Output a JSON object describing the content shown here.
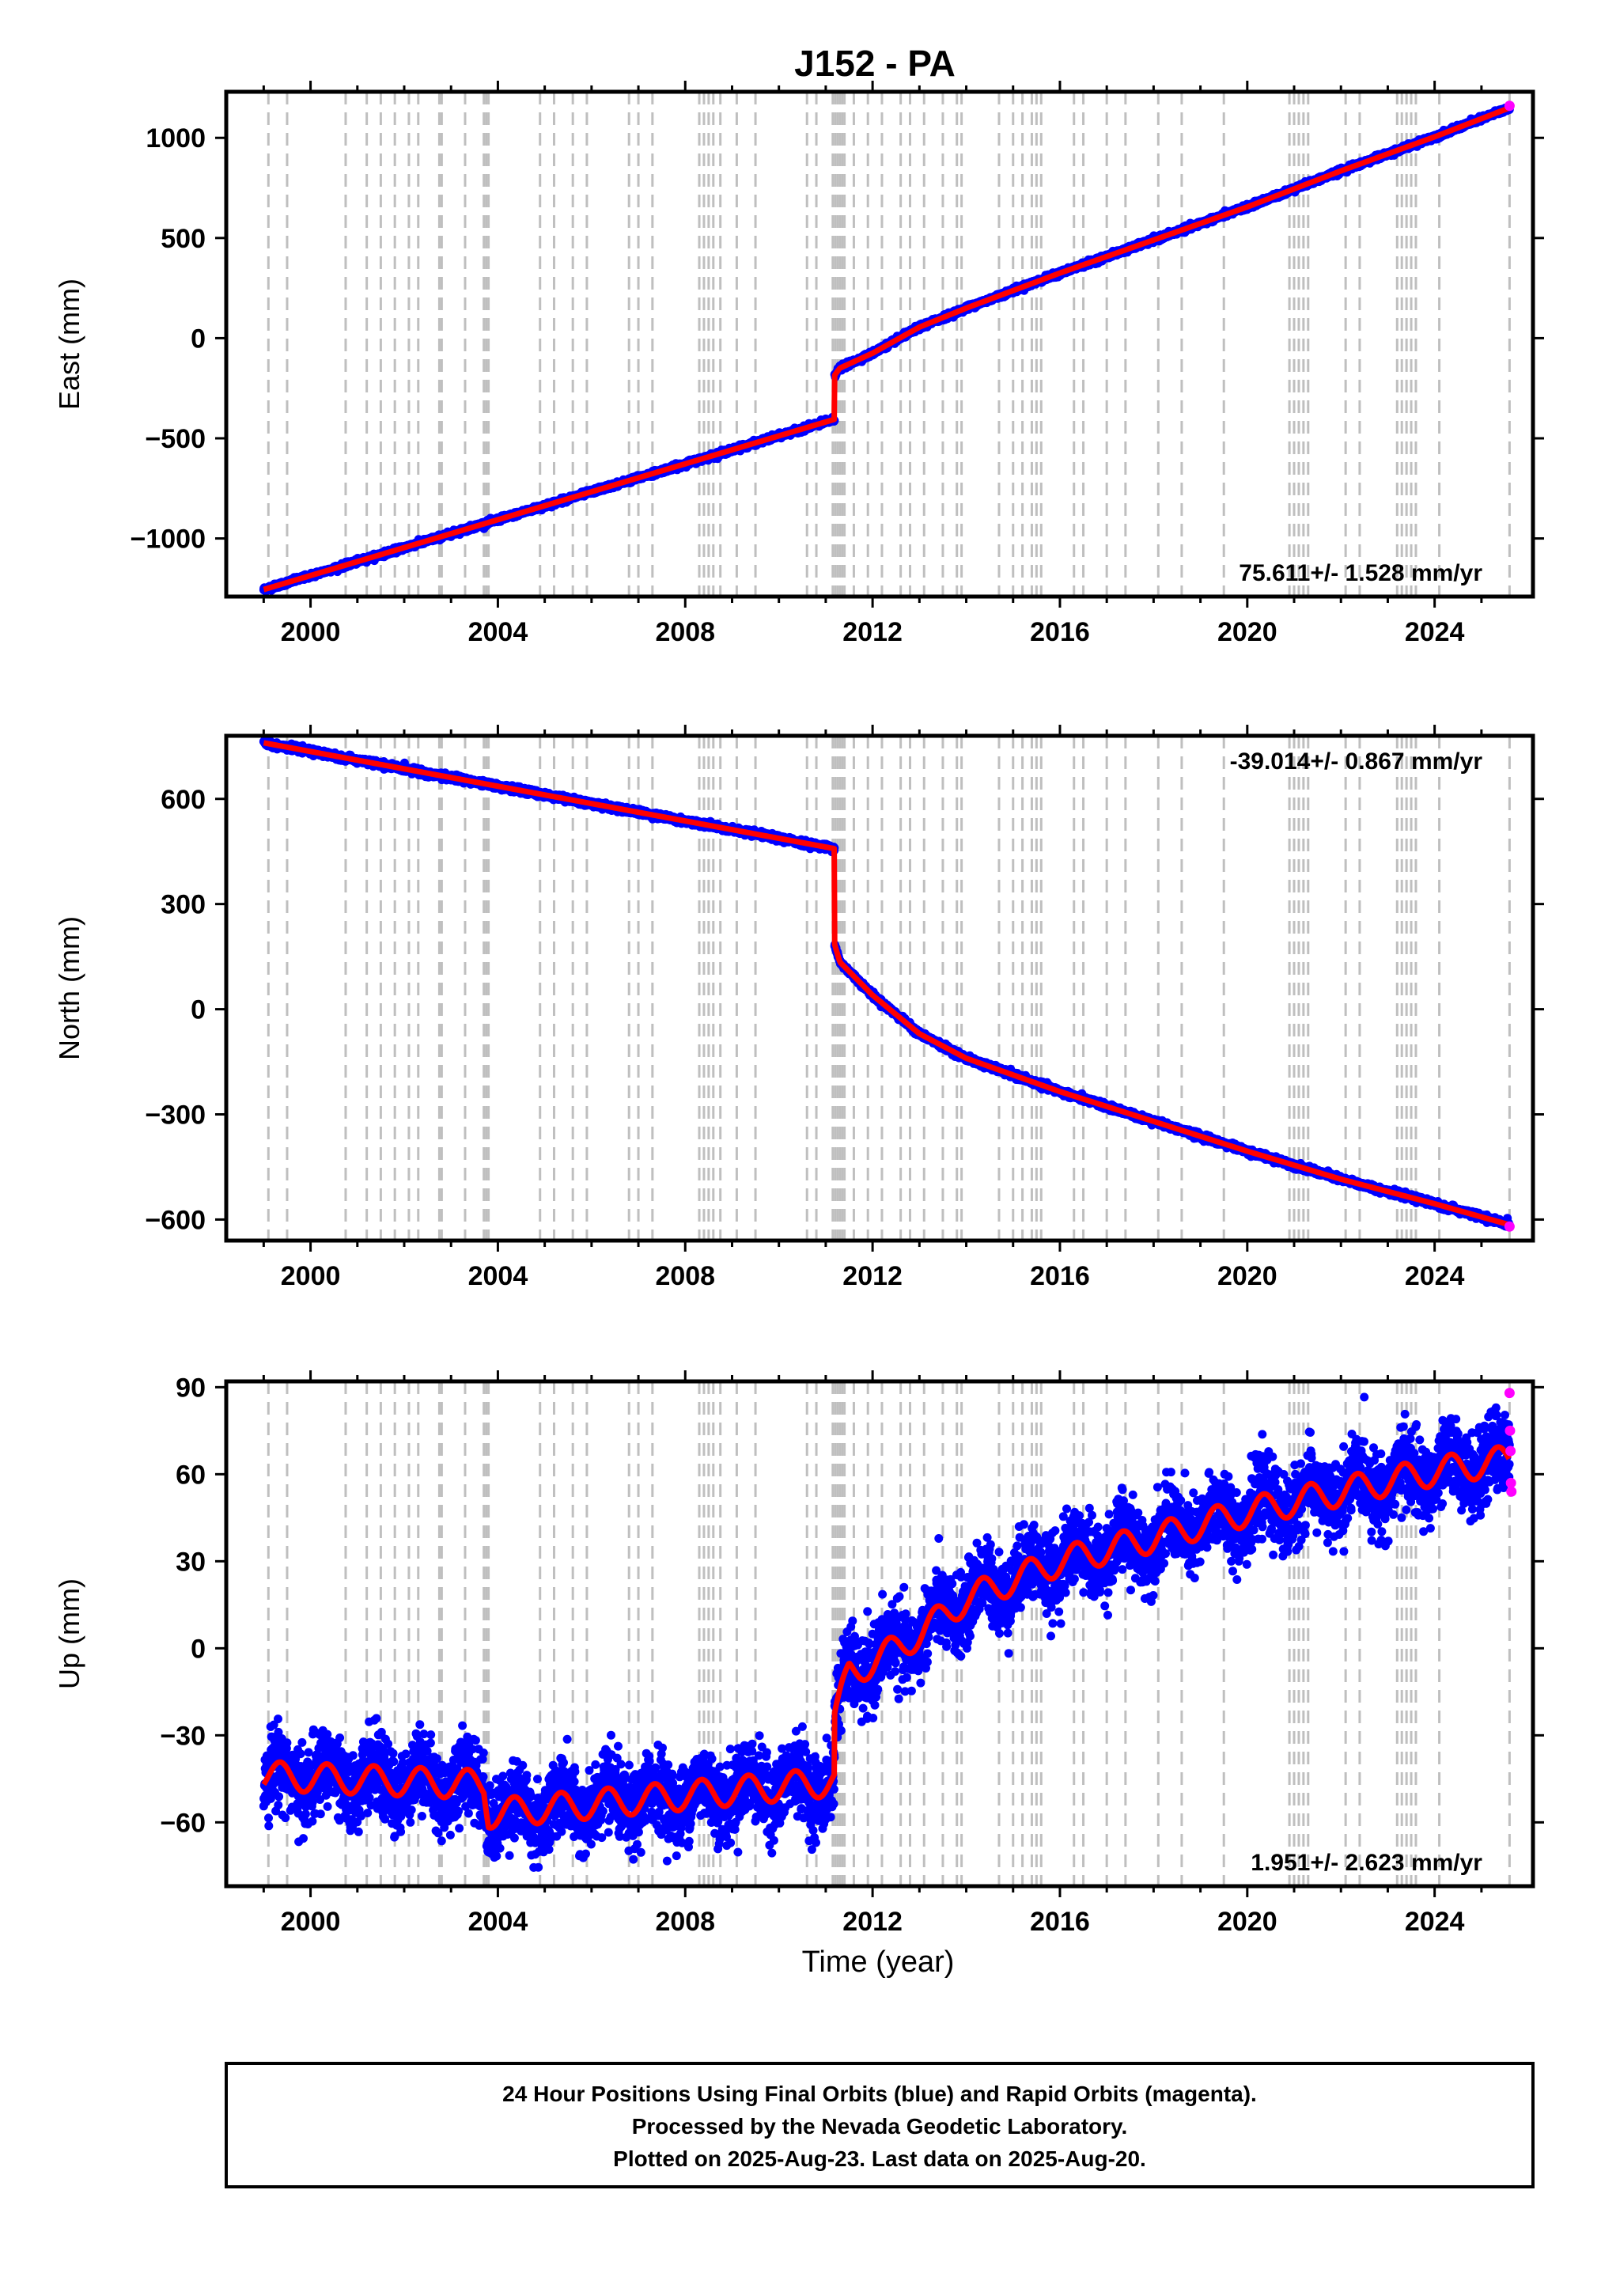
{
  "title": "J152 - PA",
  "colors": {
    "final_orbits": "#0000ff",
    "rapid_orbits": "#ff00ff",
    "model": "#ff0000",
    "event_lines": "#bfbfbf",
    "frame": "#000000"
  },
  "footer": {
    "line1": "24 Hour Positions Using Final Orbits (blue) and Rapid Orbits (magenta).",
    "line2": "Processed by the Nevada Geodetic Laboratory.",
    "line3": "Plotted on 2025-Aug-23. Last data on 2025-Aug-20."
  },
  "event_lines_years": [
    1999.1,
    1999.5,
    2000.75,
    2001.2,
    2001.5,
    2001.8,
    2002.1,
    2002.3,
    2002.75,
    2002.8,
    2003.3,
    2003.7,
    2003.75,
    2003.8,
    2004.9,
    2005.2,
    2005.6,
    2005.9,
    2006.8,
    2007.0,
    2007.3,
    2008.3,
    2008.4,
    2008.5,
    2008.6,
    2008.75,
    2009.1,
    2009.5,
    2010.6,
    2010.8,
    2011.15,
    2011.2,
    2011.25,
    2011.3,
    2011.35,
    2011.4,
    2011.6,
    2011.9,
    2012.2,
    2012.6,
    2012.8,
    2013.1,
    2013.5,
    2013.8,
    2013.9,
    2014.7,
    2015.0,
    2015.2,
    2015.4,
    2015.5,
    2015.6,
    2016.3,
    2016.5,
    2017.0,
    2017.4,
    2018.1,
    2018.6,
    2019.5,
    2020.9,
    2021.0,
    2021.1,
    2021.2,
    2021.3,
    2022.1,
    2022.4,
    2023.2,
    2023.3,
    2023.4,
    2023.5,
    2023.6,
    2024.1,
    2025.6
  ],
  "chart_data": [
    {
      "type": "scatter",
      "component": "east",
      "ylabel": "East (mm)",
      "xlim": [
        1998.2,
        2026.1
      ],
      "ylim": [
        -1290,
        1230
      ],
      "xticks": [
        2000,
        2004,
        2008,
        2012,
        2016,
        2020,
        2024
      ],
      "yticks": [
        -1000,
        -500,
        0,
        500,
        1000
      ],
      "yticklabels": [
        "−1000",
        "−500",
        "0",
        "500",
        "1000"
      ],
      "rate_label": "75.611+/- 1.528 mm/yr",
      "rate_position": "bottom-right",
      "trend_segments": [
        {
          "x": [
            1999.0,
            2011.19
          ],
          "y": [
            -1255,
            -405
          ]
        },
        {
          "x": [
            2011.19,
            2011.3,
            2012.0,
            2013.0,
            2014.0,
            2016.0,
            2018.0,
            2020.0,
            2022.0,
            2024.0,
            2025.6
          ],
          "y": [
            -185,
            -150,
            -75,
            55,
            150,
            325,
            490,
            655,
            835,
            1005,
            1150
          ]
        }
      ],
      "rapid_points": {
        "x": [
          2025.6
        ],
        "y": [
          1160
        ]
      },
      "noise_mm": 6
    },
    {
      "type": "scatter",
      "component": "north",
      "ylabel": "North (mm)",
      "xlim": [
        1998.2,
        2026.1
      ],
      "ylim": [
        -660,
        780
      ],
      "xticks": [
        2000,
        2004,
        2008,
        2012,
        2016,
        2020,
        2024
      ],
      "yticks": [
        -600,
        -300,
        0,
        300,
        600
      ],
      "yticklabels": [
        "−600",
        "−300",
        "0",
        "300",
        "600"
      ],
      "rate_label": "-39.014+/- 0.867 mm/yr",
      "rate_position": "top-right",
      "trend_segments": [
        {
          "x": [
            1999.0,
            2011.19
          ],
          "y": [
            760,
            458
          ]
        },
        {
          "x": [
            2011.19,
            2011.3,
            2012.0,
            2013.0,
            2014.0,
            2016.0,
            2018.0,
            2020.0,
            2022.0,
            2024.0,
            2025.6
          ],
          "y": [
            185,
            135,
            40,
            -70,
            -140,
            -235,
            -320,
            -405,
            -485,
            -555,
            -615
          ]
        }
      ],
      "rapid_points": {
        "x": [
          2025.6
        ],
        "y": [
          -620
        ]
      },
      "noise_mm": 4
    },
    {
      "type": "scatter",
      "component": "up",
      "ylabel": "Up (mm)",
      "xlabel": "Time (year)",
      "xlim": [
        1998.2,
        2026.1
      ],
      "ylim": [
        -82,
        92
      ],
      "xticks": [
        2000,
        2004,
        2008,
        2012,
        2016,
        2020,
        2024
      ],
      "yticks": [
        -60,
        -30,
        0,
        30,
        60,
        90
      ],
      "yticklabels": [
        "−60",
        "−30",
        "0",
        "30",
        "60",
        "90"
      ],
      "rate_label": "1.951+/- 2.623 mm/yr",
      "rate_position": "bottom-right",
      "trend_segments": [
        {
          "x": [
            1999.0,
            2003.7,
            2003.8,
            2011.19
          ],
          "y": [
            -44,
            -47,
            -57,
            -46
          ]
        },
        {
          "x": [
            2011.19,
            2011.5,
            2012.0,
            2013.0,
            2014.0,
            2016.0,
            2018.0,
            2020.0,
            2022.0,
            2024.0,
            2025.6
          ],
          "y": [
            -25,
            -8,
            -5,
            5,
            17,
            30,
            38,
            47,
            54,
            61,
            65
          ]
        }
      ],
      "seasonal_amplitude_mm": 5,
      "rapid_points": {
        "x": [
          2025.6,
          2025.61,
          2025.62,
          2025.63,
          2025.64
        ],
        "y": [
          88,
          75,
          68,
          57,
          54
        ]
      },
      "noise_mm": 6.5
    }
  ]
}
